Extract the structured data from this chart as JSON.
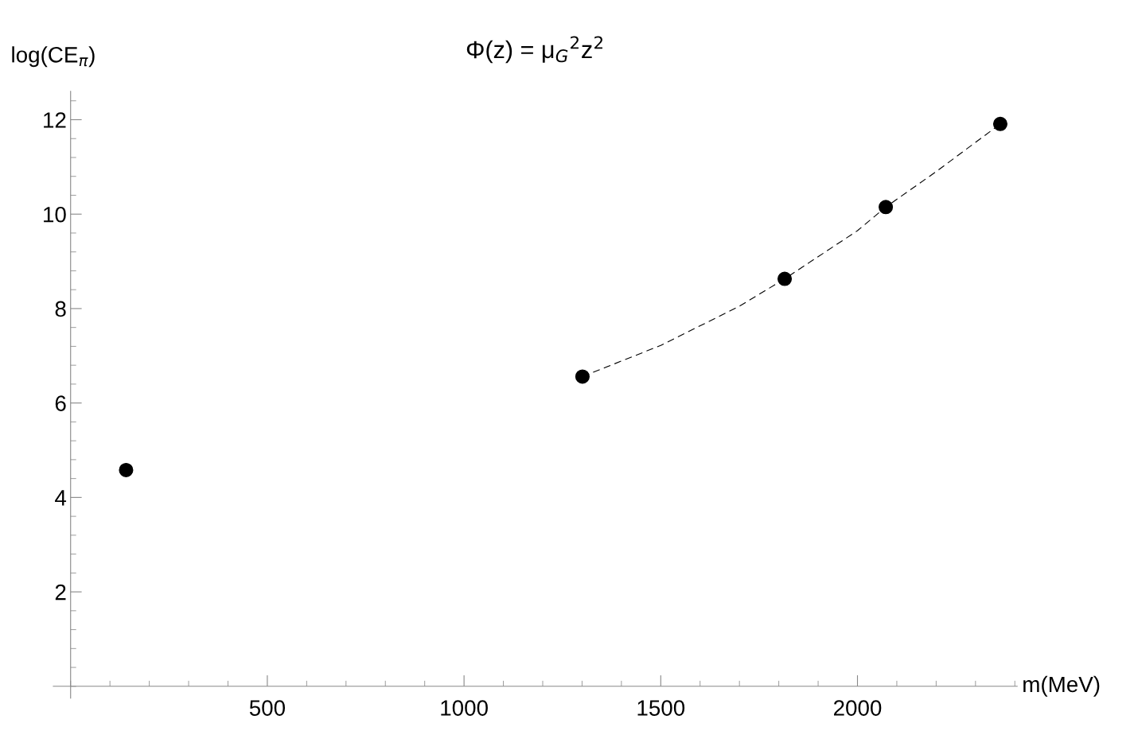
{
  "chart_data": {
    "type": "scatter",
    "title": "Φ(z) = μ$_{G}$$^{2}$z$^{2}$",
    "xlabel": "m(MeV)",
    "ylabel": "log(CE$_{π}$)",
    "xlim": [
      -44,
      2406
    ],
    "ylim": [
      -0.25,
      12.6
    ],
    "xticks": [
      500,
      1000,
      1500,
      2000
    ],
    "yticks": [
      2,
      4,
      6,
      8,
      10,
      12
    ],
    "grid": false,
    "legend": false,
    "marker": "circle",
    "series": [
      {
        "color": "#000000",
        "x": [
          141,
          1301,
          1815,
          2072,
          2363
        ],
        "values": [
          4.58,
          6.56,
          8.63,
          10.15,
          11.91
        ]
      },
      {
        "type": "line",
        "color": "#000000",
        "line_style": "dashed",
        "marker": "none",
        "x": [
          1301,
          1500,
          1700,
          1815,
          2000,
          2072,
          2200,
          2363
        ],
        "values": [
          6.56,
          7.22,
          8.05,
          8.63,
          9.65,
          10.15,
          10.9,
          11.91
        ]
      }
    ]
  }
}
